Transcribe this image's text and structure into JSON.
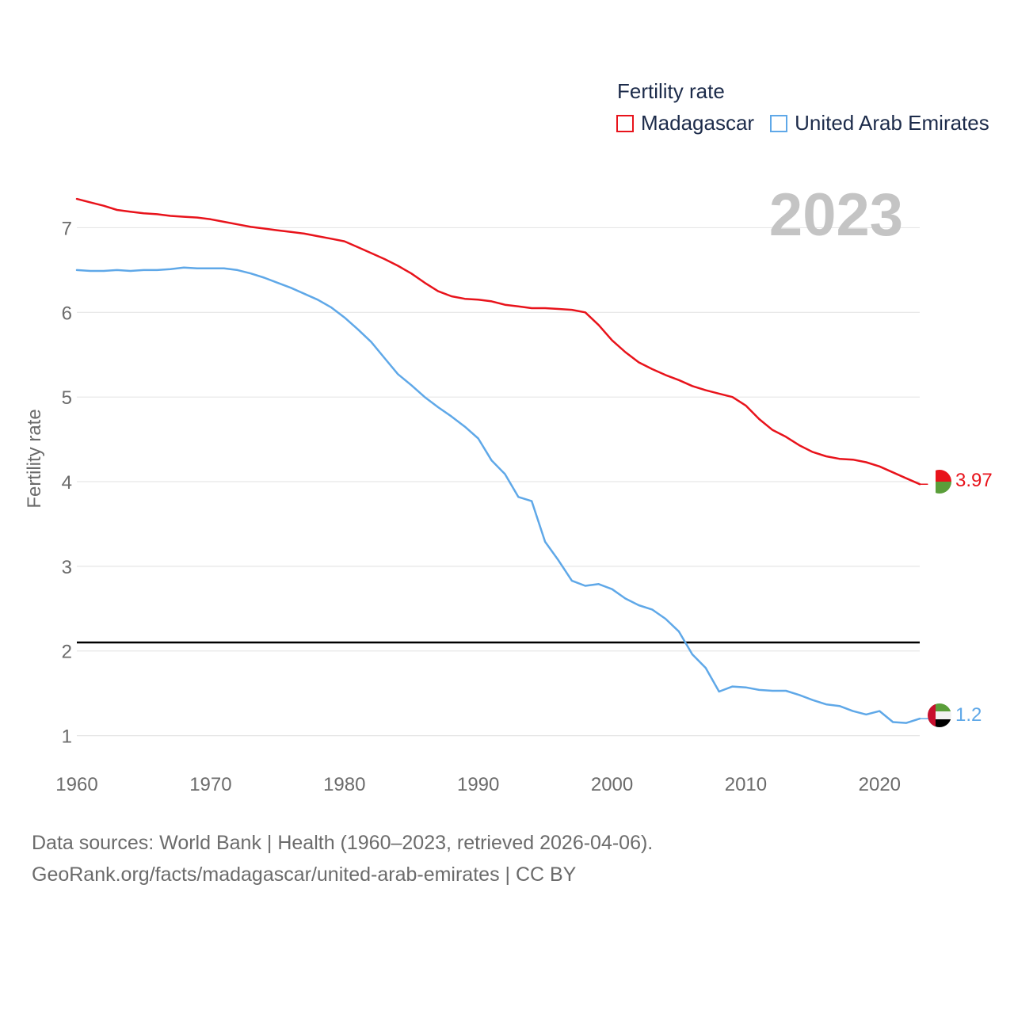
{
  "legend": {
    "title": "Fertility rate",
    "items": [
      {
        "label": "Madagascar",
        "color": "#e8131b"
      },
      {
        "label": "United Arab Emirates",
        "color": "#5fa8e8"
      }
    ]
  },
  "year_label": "2023",
  "source": {
    "line1": "Data sources: World Bank | Health (1960–2023, retrieved 2026-04-06).",
    "line2": "GeoRank.org/facts/madagascar/united-arab-emirates | CC BY"
  },
  "chart_data": {
    "type": "line",
    "ylabel": "Fertility rate",
    "xlim": [
      1960,
      2023
    ],
    "ylim": [
      0.65,
      7.65
    ],
    "yticks": [
      1,
      2,
      3,
      4,
      5,
      6,
      7
    ],
    "xticks": [
      1960,
      1970,
      1980,
      1990,
      2000,
      2010,
      2020
    ],
    "reference_line": {
      "value": 2.1,
      "color": "#000000"
    },
    "series": [
      {
        "name": "Madagascar",
        "color": "#e8131b",
        "end_label": "3.97",
        "flag": "madagascar-flag",
        "x": [
          1960,
          1961,
          1962,
          1963,
          1964,
          1965,
          1966,
          1967,
          1968,
          1969,
          1970,
          1971,
          1972,
          1973,
          1974,
          1975,
          1976,
          1977,
          1978,
          1979,
          1980,
          1981,
          1982,
          1983,
          1984,
          1985,
          1986,
          1987,
          1988,
          1989,
          1990,
          1991,
          1992,
          1993,
          1994,
          1995,
          1996,
          1997,
          1998,
          1999,
          2000,
          2001,
          2002,
          2003,
          2004,
          2005,
          2006,
          2007,
          2008,
          2009,
          2010,
          2011,
          2012,
          2013,
          2014,
          2015,
          2016,
          2017,
          2018,
          2019,
          2020,
          2021,
          2022,
          2023
        ],
        "y": [
          7.34,
          7.3,
          7.26,
          7.21,
          7.19,
          7.17,
          7.16,
          7.14,
          7.13,
          7.12,
          7.1,
          7.07,
          7.04,
          7.01,
          6.99,
          6.97,
          6.95,
          6.93,
          6.9,
          6.87,
          6.84,
          6.77,
          6.7,
          6.63,
          6.55,
          6.46,
          6.35,
          6.25,
          6.19,
          6.16,
          6.15,
          6.13,
          6.09,
          6.07,
          6.05,
          6.05,
          6.04,
          6.03,
          6.0,
          5.85,
          5.67,
          5.53,
          5.41,
          5.33,
          5.26,
          5.2,
          5.13,
          5.08,
          5.04,
          5.0,
          4.9,
          4.74,
          4.61,
          4.53,
          4.43,
          4.35,
          4.3,
          4.27,
          4.26,
          4.23,
          4.18,
          4.11,
          4.04,
          3.97
        ]
      },
      {
        "name": "United Arab Emirates",
        "color": "#5fa8e8",
        "end_label": "1.2",
        "flag": "uae-flag",
        "x": [
          1960,
          1961,
          1962,
          1963,
          1964,
          1965,
          1966,
          1967,
          1968,
          1969,
          1970,
          1971,
          1972,
          1973,
          1974,
          1975,
          1976,
          1977,
          1978,
          1979,
          1980,
          1981,
          1982,
          1983,
          1984,
          1985,
          1986,
          1987,
          1988,
          1989,
          1990,
          1991,
          1992,
          1993,
          1994,
          1995,
          1996,
          1997,
          1998,
          1999,
          2000,
          2001,
          2002,
          2003,
          2004,
          2005,
          2006,
          2007,
          2008,
          2009,
          2010,
          2011,
          2012,
          2013,
          2014,
          2015,
          2016,
          2017,
          2018,
          2019,
          2020,
          2021,
          2022,
          2023
        ],
        "y": [
          6.5,
          6.49,
          6.49,
          6.5,
          6.49,
          6.5,
          6.5,
          6.51,
          6.53,
          6.52,
          6.52,
          6.52,
          6.5,
          6.46,
          6.41,
          6.35,
          6.29,
          6.22,
          6.15,
          6.06,
          5.94,
          5.8,
          5.65,
          5.46,
          5.27,
          5.14,
          5.0,
          4.88,
          4.77,
          4.65,
          4.51,
          4.25,
          4.09,
          3.82,
          3.77,
          3.29,
          3.07,
          2.83,
          2.77,
          2.79,
          2.73,
          2.62,
          2.54,
          2.49,
          2.38,
          2.23,
          1.96,
          1.8,
          1.52,
          1.58,
          1.57,
          1.54,
          1.53,
          1.53,
          1.48,
          1.42,
          1.37,
          1.35,
          1.29,
          1.25,
          1.29,
          1.16,
          1.15,
          1.2
        ]
      }
    ]
  }
}
